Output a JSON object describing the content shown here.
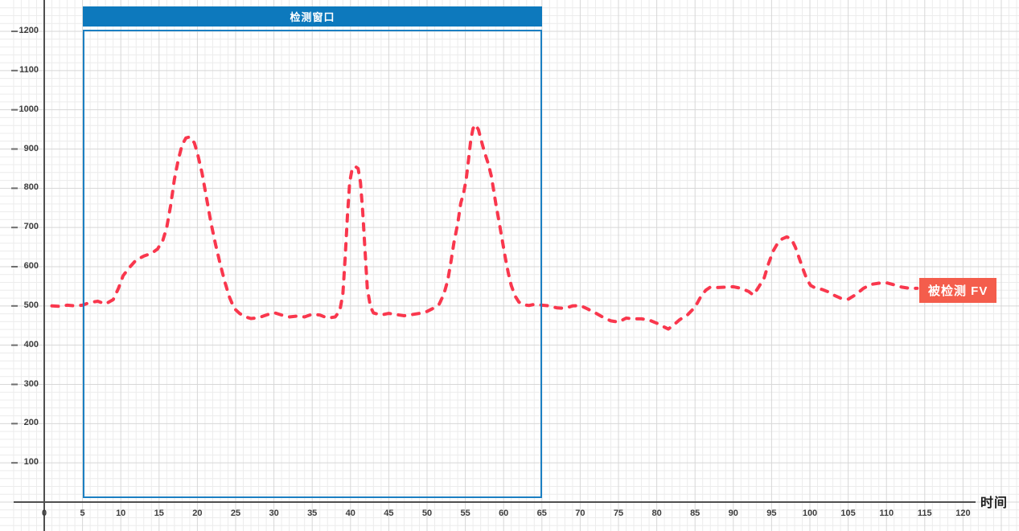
{
  "chart_data": {
    "type": "line",
    "title": "",
    "xlabel": "时间",
    "ylabel": "",
    "grid": "on",
    "x_ticks": [
      0,
      5,
      10,
      15,
      20,
      25,
      30,
      35,
      40,
      45,
      50,
      55,
      60,
      65,
      70,
      75,
      80,
      85,
      90,
      95,
      100,
      105,
      110,
      115,
      120
    ],
    "y_ticks": [
      100,
      200,
      300,
      400,
      500,
      600,
      700,
      800,
      900,
      1000,
      1100,
      1200
    ],
    "xlim": [
      0,
      120
    ],
    "ylim": [
      0,
      1200
    ],
    "series": [
      {
        "name": "被检测 FV",
        "color": "#f9374d",
        "style": "dashed",
        "points": [
          [
            1,
            500
          ],
          [
            2,
            499
          ],
          [
            3,
            502
          ],
          [
            4,
            500
          ],
          [
            5,
            502
          ],
          [
            6,
            509
          ],
          [
            7,
            512
          ],
          [
            8,
            505
          ],
          [
            9,
            516
          ],
          [
            9.7,
            545
          ],
          [
            10.3,
            577
          ],
          [
            11,
            595
          ],
          [
            12,
            617
          ],
          [
            13,
            627
          ],
          [
            14,
            634
          ],
          [
            14.8,
            645
          ],
          [
            15.5,
            668
          ],
          [
            16,
            700
          ],
          [
            16.5,
            755
          ],
          [
            17,
            822
          ],
          [
            17.5,
            872
          ],
          [
            18,
            910
          ],
          [
            18.5,
            928
          ],
          [
            19,
            931
          ],
          [
            19.6,
            916
          ],
          [
            20,
            890
          ],
          [
            20.6,
            840
          ],
          [
            21.2,
            775
          ],
          [
            21.8,
            710
          ],
          [
            22.4,
            655
          ],
          [
            23,
            605
          ],
          [
            23.6,
            560
          ],
          [
            24.2,
            522
          ],
          [
            24.8,
            494
          ],
          [
            25.5,
            481
          ],
          [
            26.3,
            472
          ],
          [
            27,
            468
          ],
          [
            28,
            470
          ],
          [
            29,
            477
          ],
          [
            30,
            483
          ],
          [
            31,
            477
          ],
          [
            32,
            472
          ],
          [
            33,
            474
          ],
          [
            34,
            472
          ],
          [
            35,
            479
          ],
          [
            36,
            477
          ],
          [
            37,
            469
          ],
          [
            38,
            472
          ],
          [
            38.6,
            488
          ],
          [
            39,
            530
          ],
          [
            39.3,
            620
          ],
          [
            39.6,
            730
          ],
          [
            39.9,
            815
          ],
          [
            40.2,
            848
          ],
          [
            40.6,
            856
          ],
          [
            41,
            850
          ],
          [
            41.3,
            815
          ],
          [
            41.6,
            740
          ],
          [
            41.9,
            640
          ],
          [
            42.2,
            545
          ],
          [
            42.6,
            498
          ],
          [
            43,
            482
          ],
          [
            44,
            477
          ],
          [
            45,
            481
          ],
          [
            46,
            478
          ],
          [
            47,
            475
          ],
          [
            48,
            478
          ],
          [
            49,
            481
          ],
          [
            50,
            486
          ],
          [
            50.8,
            494
          ],
          [
            51.6,
            505
          ],
          [
            52.2,
            530
          ],
          [
            52.7,
            565
          ],
          [
            53.1,
            610
          ],
          [
            53.5,
            660
          ],
          [
            54,
            710
          ],
          [
            54.4,
            762
          ],
          [
            54.8,
            790
          ],
          [
            55.1,
            822
          ],
          [
            55.4,
            870
          ],
          [
            55.7,
            922
          ],
          [
            56,
            952
          ],
          [
            56.3,
            962
          ],
          [
            56.7,
            950
          ],
          [
            57.1,
            920
          ],
          [
            57.5,
            892
          ],
          [
            58,
            862
          ],
          [
            58.4,
            830
          ],
          [
            58.7,
            795
          ],
          [
            59,
            758
          ],
          [
            59.4,
            715
          ],
          [
            59.8,
            670
          ],
          [
            60.2,
            625
          ],
          [
            60.6,
            585
          ],
          [
            61,
            552
          ],
          [
            61.5,
            525
          ],
          [
            62,
            510
          ],
          [
            62.6,
            503
          ],
          [
            63.3,
            501
          ],
          [
            64,
            504
          ],
          [
            65,
            502
          ],
          [
            66,
            500
          ],
          [
            67,
            495
          ],
          [
            68,
            494
          ],
          [
            69,
            500
          ],
          [
            70,
            501
          ],
          [
            71,
            492
          ],
          [
            72,
            482
          ],
          [
            73,
            471
          ],
          [
            74,
            462
          ],
          [
            75,
            459
          ],
          [
            76,
            469
          ],
          [
            77,
            467
          ],
          [
            78,
            467
          ],
          [
            79,
            464
          ],
          [
            80,
            456
          ],
          [
            81,
            446
          ],
          [
            81.5,
            441
          ],
          [
            82,
            448
          ],
          [
            83,
            465
          ],
          [
            84,
            477
          ],
          [
            85,
            497
          ],
          [
            85.7,
            522
          ],
          [
            86.4,
            540
          ],
          [
            87,
            548
          ],
          [
            88,
            547
          ],
          [
            89,
            548
          ],
          [
            90,
            549
          ],
          [
            91,
            545
          ],
          [
            92,
            537
          ],
          [
            92.6,
            528
          ],
          [
            93.2,
            545
          ],
          [
            94,
            570
          ],
          [
            94.6,
            608
          ],
          [
            95.2,
            640
          ],
          [
            95.8,
            660
          ],
          [
            96.4,
            671
          ],
          [
            97,
            676
          ],
          [
            97.6,
            670
          ],
          [
            98.1,
            650
          ],
          [
            98.6,
            622
          ],
          [
            99.1,
            594
          ],
          [
            99.6,
            568
          ],
          [
            100.1,
            552
          ],
          [
            100.8,
            545
          ],
          [
            101.6,
            542
          ],
          [
            102.4,
            536
          ],
          [
            103.2,
            527
          ],
          [
            104,
            520
          ],
          [
            105,
            517
          ],
          [
            106,
            529
          ],
          [
            107,
            545
          ],
          [
            108,
            555
          ],
          [
            109,
            558
          ],
          [
            110,
            559
          ],
          [
            111,
            554
          ],
          [
            112,
            548
          ],
          [
            113,
            545
          ],
          [
            114,
            545
          ]
        ]
      }
    ],
    "annotations": {
      "detection_window": {
        "label": "检测窗口",
        "x_start": 5,
        "x_end": 65,
        "header_color": "#0d79bd",
        "border_color": "#1b7fc2"
      },
      "series_label": {
        "text": "被检测 FV",
        "background_color": "#f45d4c",
        "text_color": "#ffffff"
      }
    },
    "colors": {
      "grid_minor": "#ececec",
      "grid_major": "#d7d7d7",
      "axis": "#4f4f4f",
      "tick_text": "#3d3d3d"
    }
  }
}
